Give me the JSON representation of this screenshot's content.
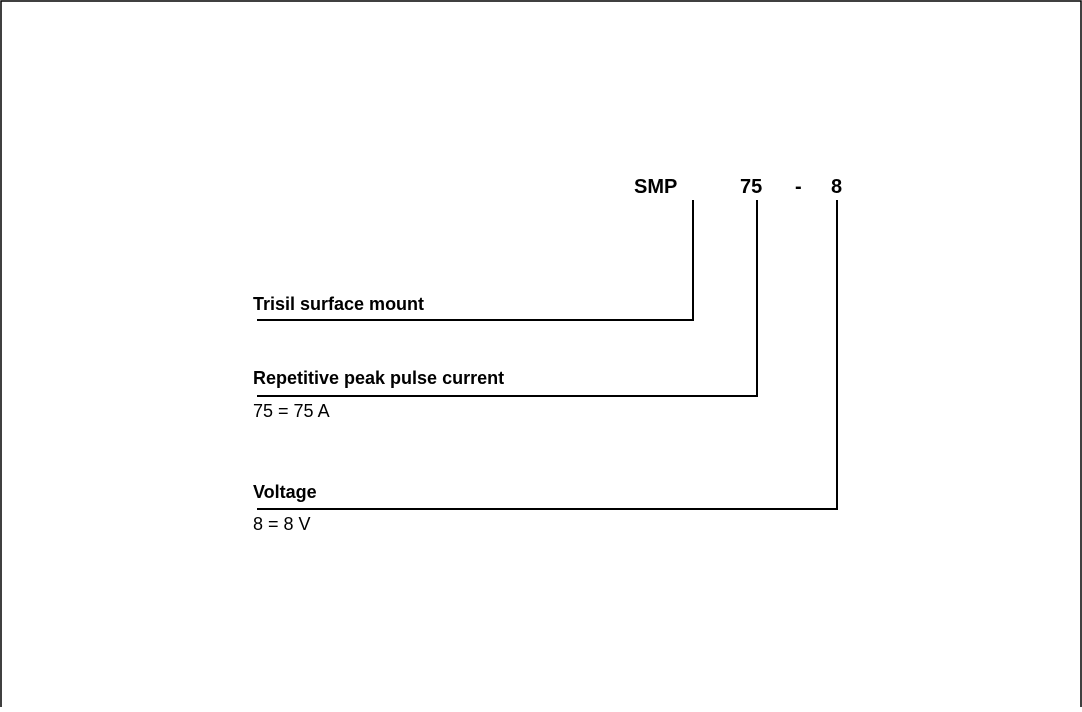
{
  "code": {
    "parts": [
      "SMP",
      "75",
      "-",
      "8"
    ]
  },
  "fields": [
    {
      "label": "Trisil surface mount"
    },
    {
      "label": "Repetitive peak pulse current",
      "detail": "75 = 75 A"
    },
    {
      "label": "Voltage",
      "detail": "8 = 8 V"
    }
  ]
}
